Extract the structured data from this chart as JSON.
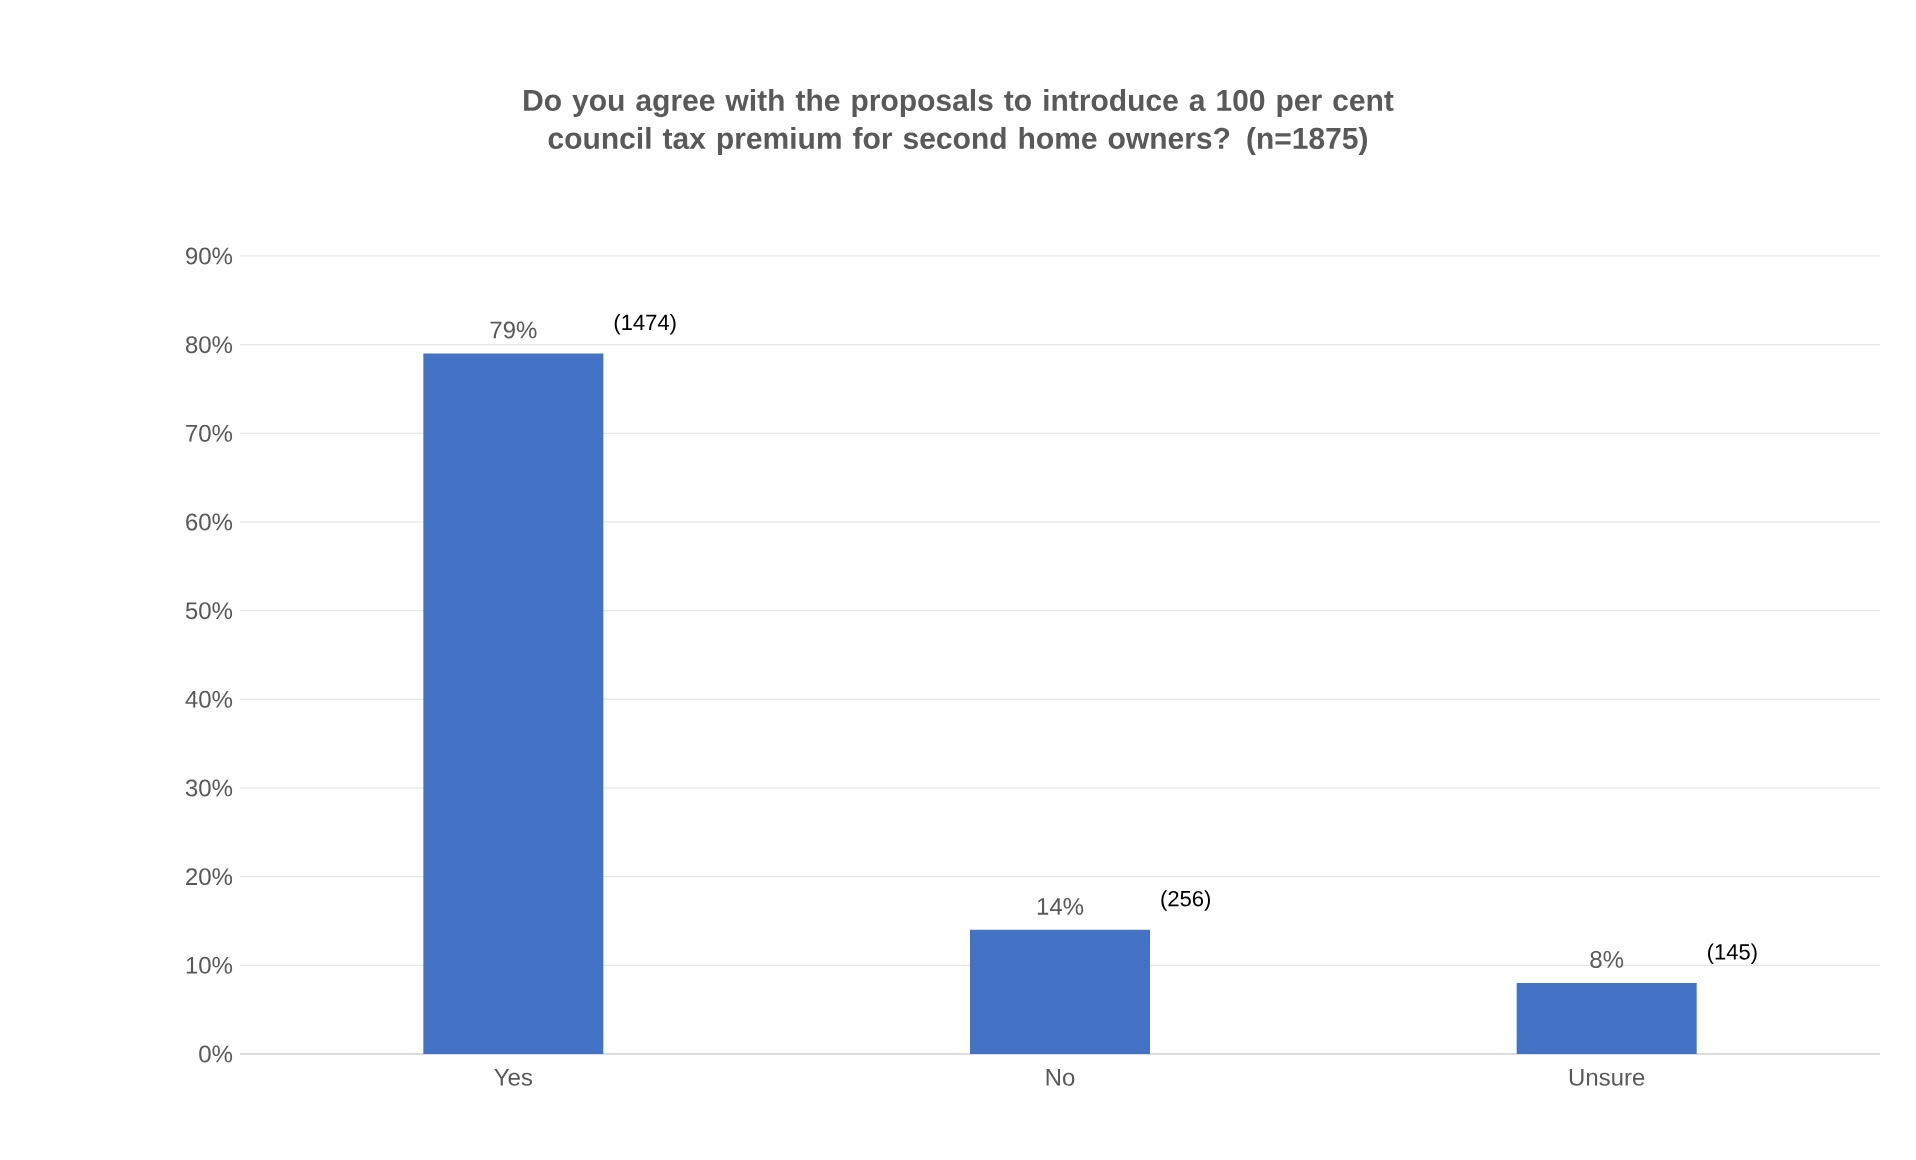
{
  "chart_data": {
    "type": "bar",
    "title": "Do you agree with the proposals to introduce a 100 per cent council tax premium for second home owners? (n=1875)",
    "categories": [
      "Yes",
      "No",
      "Unsure"
    ],
    "values": [
      79,
      14,
      8
    ],
    "value_labels": [
      "79%",
      "14%",
      "8%"
    ],
    "color": "#4472c4",
    "ylim": [
      0,
      90
    ],
    "yticks": [
      {
        "value": 0,
        "label": "0%"
      },
      {
        "value": 10,
        "label": "10%"
      },
      {
        "value": 20,
        "label": "20%"
      },
      {
        "value": 30,
        "label": "30%"
      },
      {
        "value": 40,
        "label": "40%"
      },
      {
        "value": 50,
        "label": "50%"
      },
      {
        "value": 60,
        "label": "60%"
      },
      {
        "value": 70,
        "label": "70%"
      },
      {
        "value": 80,
        "label": "80%"
      },
      {
        "value": 90,
        "label": "90%"
      }
    ],
    "grid": "y",
    "annotations": [
      "(1474)",
      "(256)",
      "(145)"
    ]
  }
}
